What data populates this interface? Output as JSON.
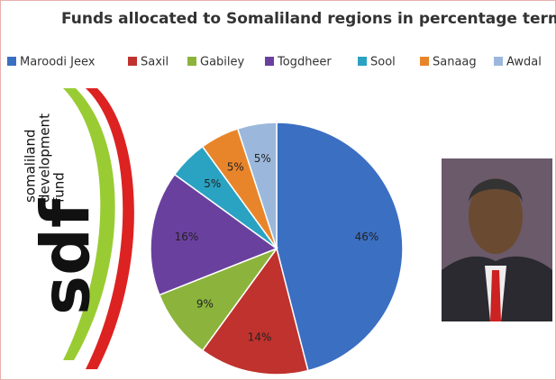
{
  "chart_data": {
    "type": "pie",
    "title": "Funds allocated to Somaliland regions in percentage terms",
    "categories": [
      "Maroodi Jeex",
      "Saxil",
      "Gabiley",
      "Togdheer",
      "Sool",
      "Sanaag",
      "Awdal"
    ],
    "values": [
      46,
      14,
      9,
      16,
      5,
      5,
      5
    ],
    "value_labels": [
      "46%",
      "14%",
      "9%",
      "16%",
      "5%",
      "5%",
      "5%"
    ],
    "colors": [
      "#3b6fc2",
      "#c0322d",
      "#8cb43c",
      "#6a409e",
      "#2aa2c2",
      "#e8852b",
      "#9bb8dc"
    ]
  },
  "logo": {
    "letters": "sdf",
    "name_lines": [
      "somaliland",
      "development",
      "fund"
    ]
  }
}
